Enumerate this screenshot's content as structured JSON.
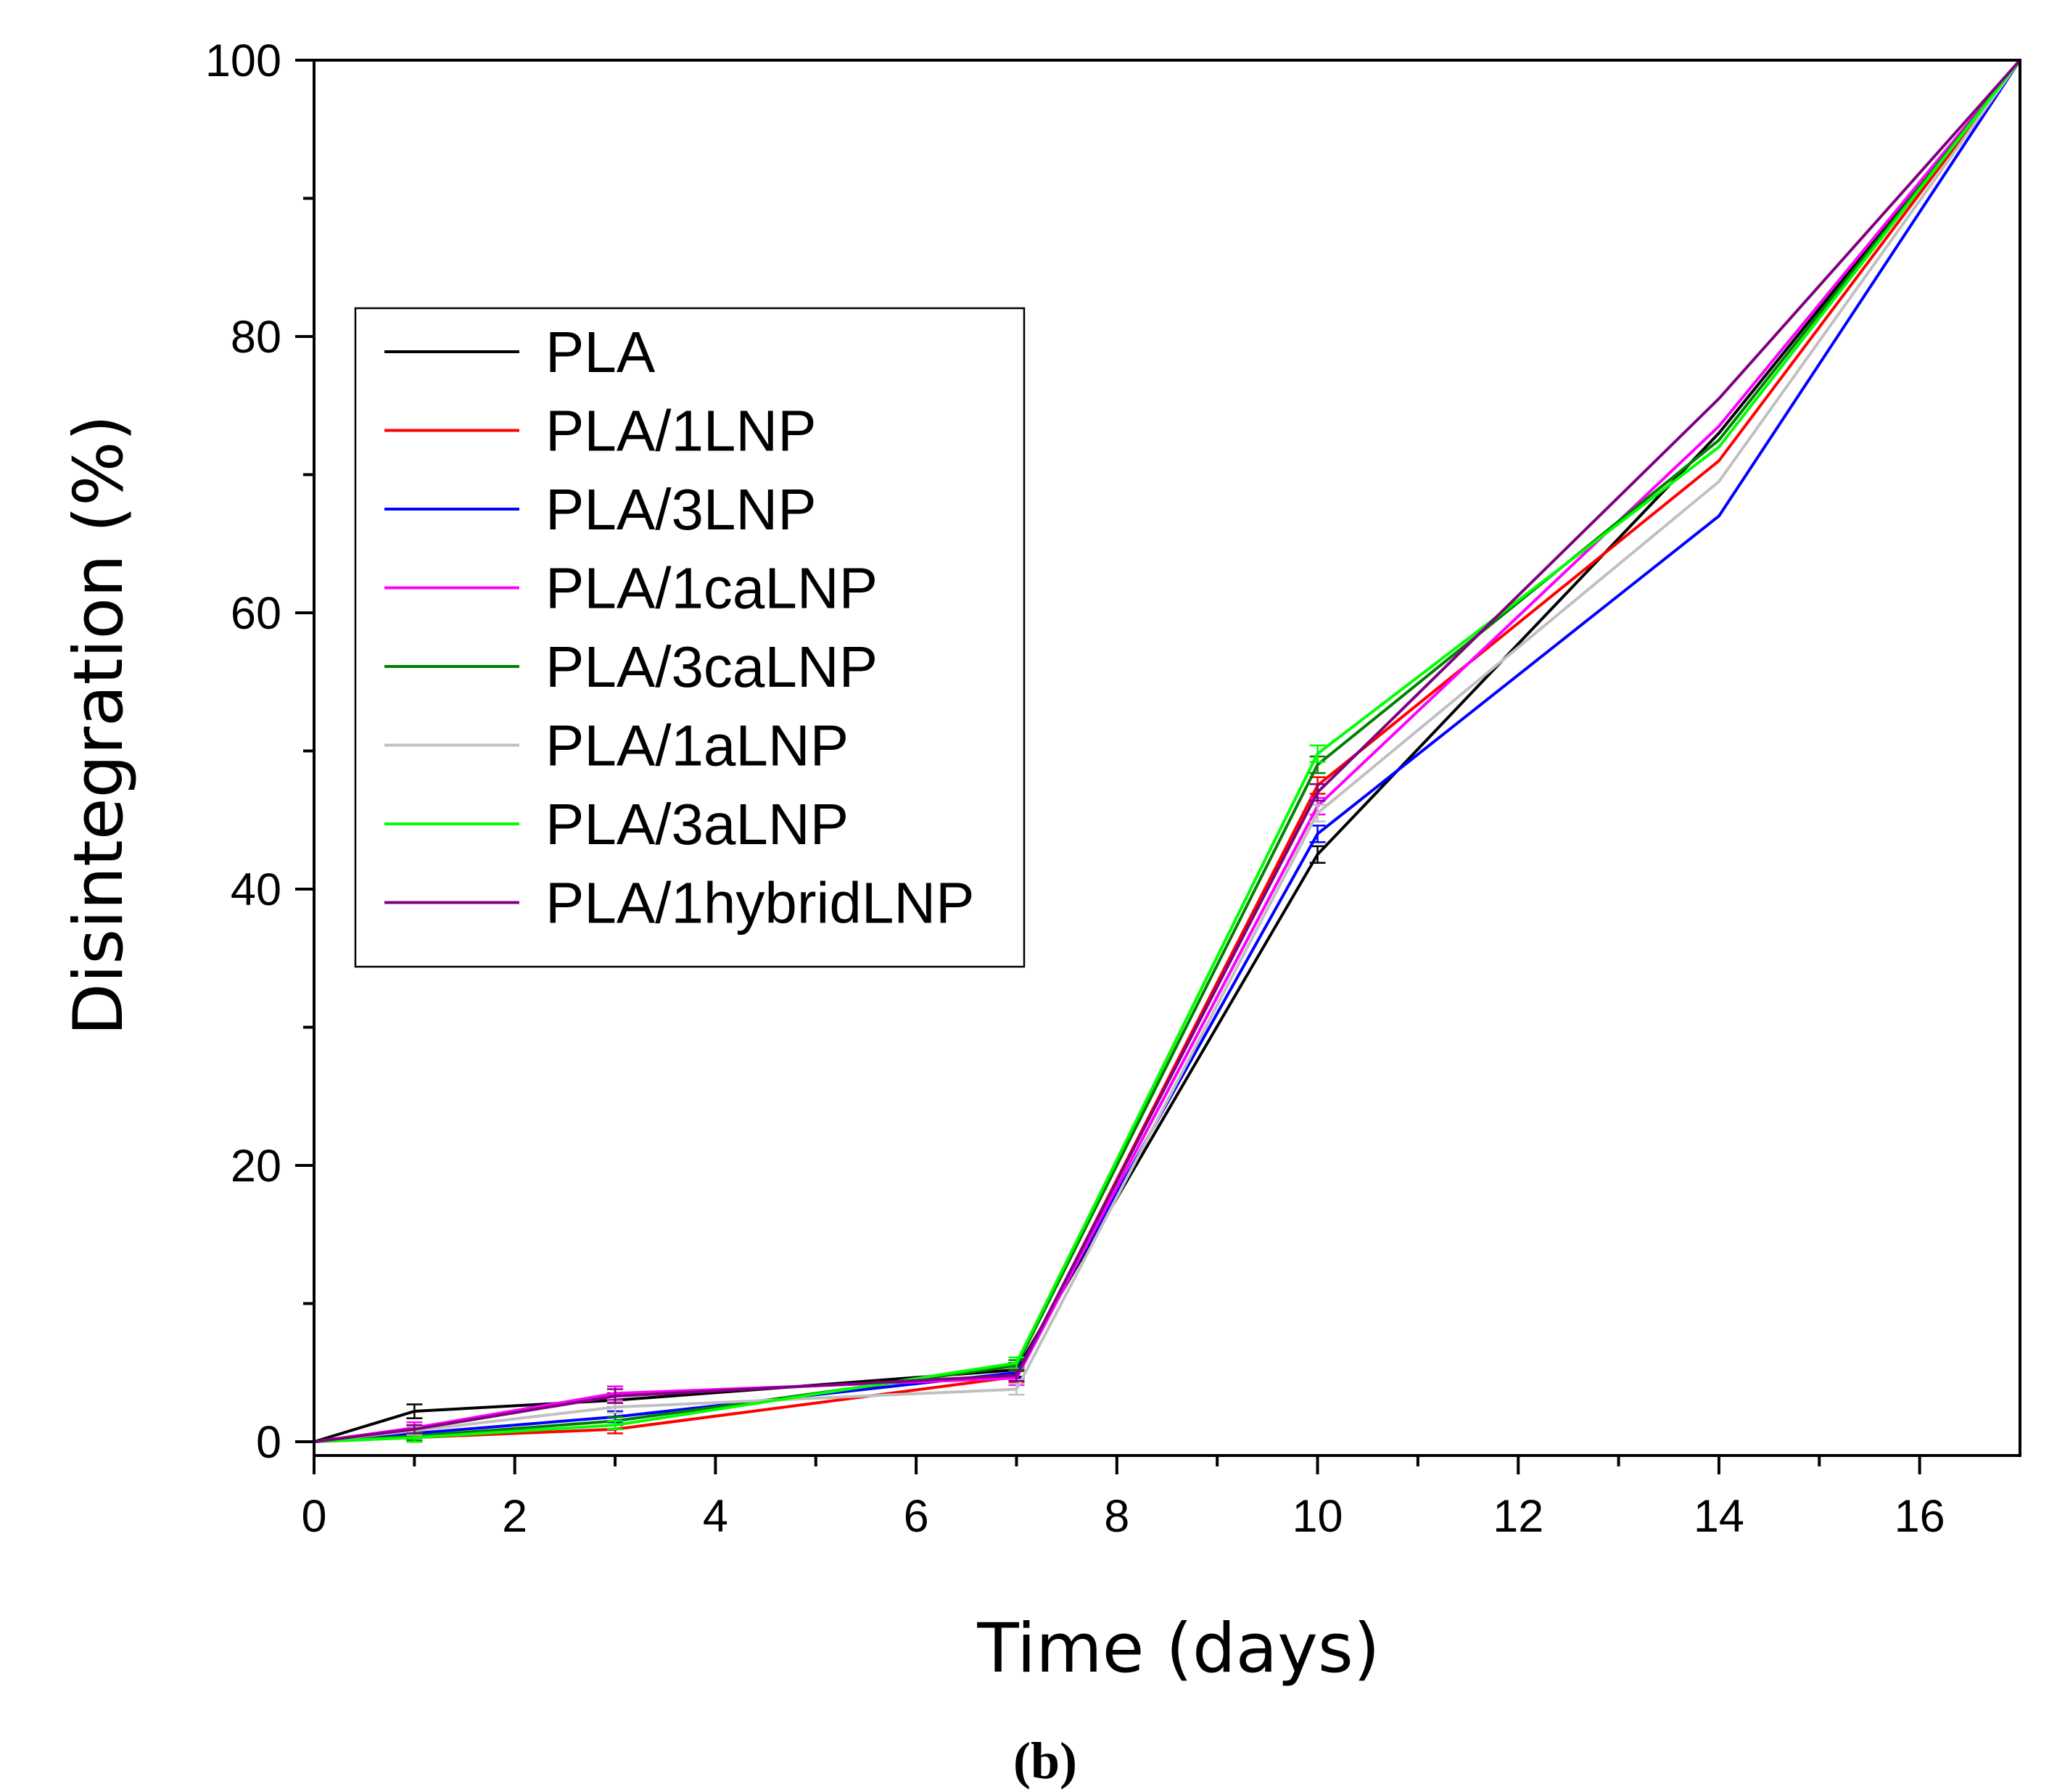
{
  "chart_data": {
    "type": "line",
    "title": "",
    "xlabel": "Time (days)",
    "ylabel": "Disintegration (%)",
    "xlim": [
      0,
      17
    ],
    "ylim": [
      -1,
      100
    ],
    "xticks": [
      0,
      2,
      4,
      6,
      8,
      10,
      12,
      14,
      16
    ],
    "yticks": [
      0,
      20,
      40,
      60,
      80,
      100
    ],
    "x": [
      0,
      1,
      3,
      7,
      10,
      14,
      17
    ],
    "legend_position": "upper-left",
    "grid": false,
    "series": [
      {
        "name": "PLA",
        "color": "#000000",
        "values": [
          0,
          2.2,
          3.0,
          5.2,
          42.5,
          73.0,
          100
        ],
        "errors": [
          0,
          0.5,
          0.5,
          0.5,
          0.6,
          0,
          0
        ]
      },
      {
        "name": "PLA/1LNP",
        "color": "#ff0000",
        "values": [
          0,
          0.3,
          0.9,
          4.7,
          47.5,
          71.0,
          100
        ],
        "errors": [
          0,
          0.3,
          0.3,
          0.4,
          0.6,
          0,
          0
        ]
      },
      {
        "name": "PLA/3LNP",
        "color": "#0000ff",
        "values": [
          0,
          0.6,
          1.8,
          5.0,
          44.0,
          67.0,
          100
        ],
        "errors": [
          0,
          0.3,
          0.4,
          0.4,
          0.6,
          0,
          0
        ]
      },
      {
        "name": "PLA/1caLNP",
        "color": "#ff00ff",
        "values": [
          0,
          1.0,
          3.5,
          4.6,
          46.0,
          73.5,
          100
        ],
        "errors": [
          0,
          0.4,
          0.5,
          0.5,
          0.6,
          0,
          0
        ]
      },
      {
        "name": "PLA/3caLNP",
        "color": "#008000",
        "values": [
          0,
          0.4,
          1.5,
          5.5,
          49.0,
          72.5,
          100
        ],
        "errors": [
          0,
          0.3,
          0.3,
          0.4,
          0.6,
          0,
          0
        ]
      },
      {
        "name": "PLA/1aLNP",
        "color": "#c0c0c0",
        "values": [
          0,
          0.8,
          2.5,
          3.8,
          45.5,
          69.5,
          100
        ],
        "errors": [
          0,
          0.3,
          0.4,
          0.4,
          0.6,
          0,
          0
        ]
      },
      {
        "name": "PLA/3aLNP",
        "color": "#00ff00",
        "values": [
          0,
          0.3,
          1.2,
          5.7,
          49.8,
          72.0,
          100
        ],
        "errors": [
          0,
          0.3,
          0.3,
          0.4,
          0.6,
          0,
          0
        ]
      },
      {
        "name": "PLA/1hybridLNP",
        "color": "#800080",
        "values": [
          0,
          0.9,
          3.3,
          4.8,
          47.0,
          75.5,
          100
        ],
        "errors": [
          0,
          0.3,
          0.5,
          0.4,
          0.6,
          0,
          0
        ]
      }
    ]
  },
  "caption": "(b)"
}
